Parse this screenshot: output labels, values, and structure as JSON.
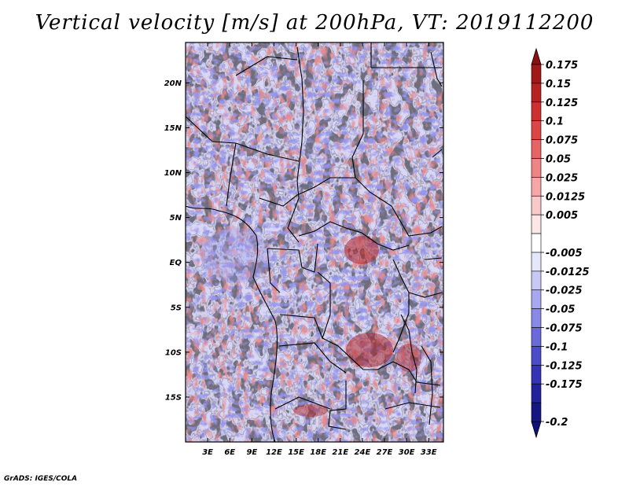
{
  "title": "Vertical velocity [m/s] at 200hPa, VT: 2019112200",
  "footer": "GrADS: IGES/COLA",
  "map": {
    "lat_range": [
      -20,
      24.5
    ],
    "lon_range": [
      0,
      35
    ],
    "lat_ticks": [
      {
        "value": 20,
        "label": "20N"
      },
      {
        "value": 15,
        "label": "15N"
      },
      {
        "value": 10,
        "label": "10N"
      },
      {
        "value": 5,
        "label": "5N"
      },
      {
        "value": 0,
        "label": "EQ"
      },
      {
        "value": -5,
        "label": "5S"
      },
      {
        "value": -10,
        "label": "10S"
      },
      {
        "value": -15,
        "label": "15S"
      }
    ],
    "lon_ticks": [
      {
        "value": 3,
        "label": "3E"
      },
      {
        "value": 6,
        "label": "6E"
      },
      {
        "value": 9,
        "label": "9E"
      },
      {
        "value": 12,
        "label": "12E"
      },
      {
        "value": 15,
        "label": "15E"
      },
      {
        "value": 18,
        "label": "18E"
      },
      {
        "value": 21,
        "label": "21E"
      },
      {
        "value": 24,
        "label": "24E"
      },
      {
        "value": 27,
        "label": "27E"
      },
      {
        "value": 30,
        "label": "30E"
      },
      {
        "value": 33,
        "label": "33E"
      }
    ]
  },
  "colorbar": {
    "bins": [
      {
        "label": "0.175",
        "color": "#a01818"
      },
      {
        "label": "0.15",
        "color": "#b62222"
      },
      {
        "label": "0.125",
        "color": "#cc3030"
      },
      {
        "label": "0.1",
        "color": "#dd4646"
      },
      {
        "label": "0.075",
        "color": "#e86464"
      },
      {
        "label": "0.05",
        "color": "#ef8484"
      },
      {
        "label": "0.025",
        "color": "#f5a6a6"
      },
      {
        "label": "0.0125",
        "color": "#f9c8c8"
      },
      {
        "label": "0.005",
        "color": "#fce6e6"
      },
      {
        "label": "",
        "color": "#ffffff"
      },
      {
        "label": "-0.005",
        "color": "#e6e6fb"
      },
      {
        "label": "-0.0125",
        "color": "#c8c8f5"
      },
      {
        "label": "-0.025",
        "color": "#a8a8ee"
      },
      {
        "label": "-0.05",
        "color": "#8888e6"
      },
      {
        "label": "-0.075",
        "color": "#6a6ad8"
      },
      {
        "label": "-0.1",
        "color": "#4c4cc8"
      },
      {
        "label": "-0.125",
        "color": "#3434b4"
      },
      {
        "label": "-0.175",
        "color": "#22229c"
      },
      {
        "label": "-0.2",
        "color": "#161680"
      }
    ],
    "top_color": "#8c1010",
    "bottom_color": "#10107a"
  }
}
